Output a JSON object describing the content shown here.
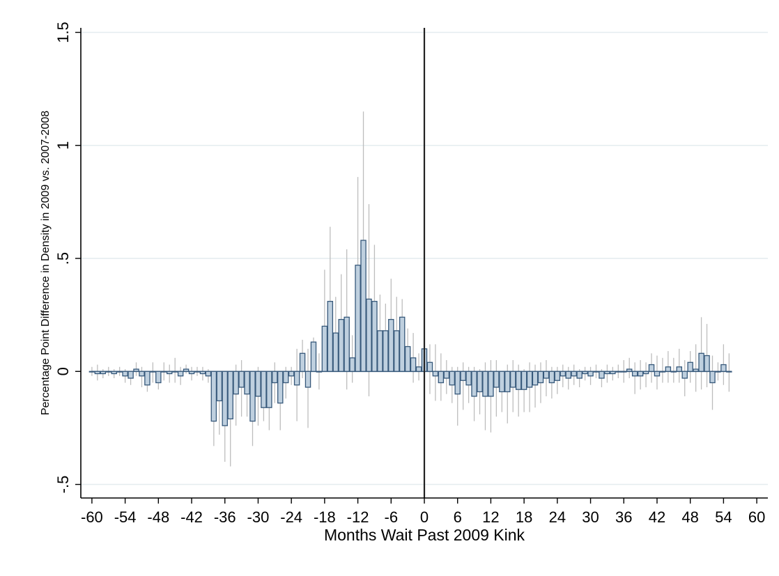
{
  "colors": {
    "background": "#ffffff",
    "bar_fill": "#bfd0df",
    "bar_stroke": "#36587a",
    "ci_line": "#bdbdbd",
    "grid": "#e4ecef",
    "axis": "#000000",
    "ref_line": "#222222"
  },
  "chart_data": {
    "type": "bar",
    "xlabel": "Months Wait Past 2009 Kink",
    "ylabel": "Percentage Point Difference in Density in 2009 vs. 2007-2008",
    "xlim": [
      -62,
      62
    ],
    "ylim": [
      -0.56,
      1.52
    ],
    "x_ticks": [
      -60,
      -54,
      -48,
      -42,
      -36,
      -30,
      -24,
      -18,
      -12,
      -6,
      0,
      6,
      12,
      18,
      24,
      30,
      36,
      42,
      48,
      54,
      60
    ],
    "x_tick_labels": [
      "-60",
      "-54",
      "-48",
      "-42",
      "-36",
      "-30",
      "-24",
      "-18",
      "-12",
      "-6",
      "0",
      "6",
      "12",
      "18",
      "24",
      "30",
      "36",
      "42",
      "48",
      "54",
      "60"
    ],
    "y_ticks": [
      -0.5,
      0,
      0.5,
      1,
      1.5
    ],
    "y_tick_labels": [
      "-.5",
      "0",
      ".5",
      "1",
      "1.5"
    ],
    "grid": "horizontal",
    "reference_line_x": 0,
    "bar_width": 0.9,
    "bars": [
      {
        "x": -60,
        "y": 0.0,
        "lo": -0.02,
        "hi": 0.02
      },
      {
        "x": -59,
        "y": -0.01,
        "lo": -0.04,
        "hi": 0.03
      },
      {
        "x": -58,
        "y": -0.01,
        "lo": -0.03,
        "hi": 0.01
      },
      {
        "x": -57,
        "y": 0.0,
        "lo": -0.02,
        "hi": 0.02
      },
      {
        "x": -56,
        "y": -0.01,
        "lo": -0.03,
        "hi": 0.01
      },
      {
        "x": -55,
        "y": 0.0,
        "lo": -0.02,
        "hi": 0.02
      },
      {
        "x": -54,
        "y": -0.02,
        "lo": -0.05,
        "hi": 0.01
      },
      {
        "x": -53,
        "y": -0.03,
        "lo": -0.06,
        "hi": 0.0
      },
      {
        "x": -52,
        "y": 0.01,
        "lo": -0.02,
        "hi": 0.04
      },
      {
        "x": -51,
        "y": -0.02,
        "lo": -0.07,
        "hi": 0.02
      },
      {
        "x": -50,
        "y": -0.06,
        "lo": -0.09,
        "hi": -0.02
      },
      {
        "x": -49,
        "y": 0.0,
        "lo": -0.05,
        "hi": 0.04
      },
      {
        "x": -48,
        "y": -0.05,
        "lo": -0.08,
        "hi": -0.01
      },
      {
        "x": -47,
        "y": 0.0,
        "lo": -0.04,
        "hi": 0.04
      },
      {
        "x": -46,
        "y": -0.01,
        "lo": -0.05,
        "hi": 0.03
      },
      {
        "x": -45,
        "y": 0.0,
        "lo": -0.05,
        "hi": 0.06
      },
      {
        "x": -44,
        "y": -0.02,
        "lo": -0.06,
        "hi": 0.02
      },
      {
        "x": -43,
        "y": 0.01,
        "lo": -0.01,
        "hi": 0.03
      },
      {
        "x": -42,
        "y": -0.01,
        "lo": -0.04,
        "hi": 0.02
      },
      {
        "x": -41,
        "y": 0.0,
        "lo": -0.02,
        "hi": 0.02
      },
      {
        "x": -40,
        "y": -0.01,
        "lo": -0.04,
        "hi": 0.02
      },
      {
        "x": -39,
        "y": -0.02,
        "lo": -0.05,
        "hi": 0.01
      },
      {
        "x": -38,
        "y": -0.22,
        "lo": -0.33,
        "hi": -0.11
      },
      {
        "x": -37,
        "y": -0.13,
        "lo": -0.28,
        "hi": 0.0
      },
      {
        "x": -36,
        "y": -0.24,
        "lo": -0.4,
        "hi": -0.09
      },
      {
        "x": -35,
        "y": -0.21,
        "lo": -0.42,
        "hi": 0.0
      },
      {
        "x": -34,
        "y": -0.1,
        "lo": -0.24,
        "hi": 0.03
      },
      {
        "x": -33,
        "y": -0.07,
        "lo": -0.2,
        "hi": 0.05
      },
      {
        "x": -32,
        "y": -0.1,
        "lo": -0.2,
        "hi": -0.01
      },
      {
        "x": -31,
        "y": -0.22,
        "lo": -0.33,
        "hi": -0.11
      },
      {
        "x": -30,
        "y": -0.11,
        "lo": -0.24,
        "hi": 0.02
      },
      {
        "x": -29,
        "y": -0.16,
        "lo": -0.22,
        "hi": -0.1
      },
      {
        "x": -28,
        "y": -0.16,
        "lo": -0.26,
        "hi": -0.06
      },
      {
        "x": -27,
        "y": -0.05,
        "lo": -0.14,
        "hi": 0.04
      },
      {
        "x": -26,
        "y": -0.14,
        "lo": -0.26,
        "hi": -0.02
      },
      {
        "x": -25,
        "y": -0.05,
        "lo": -0.12,
        "hi": 0.02
      },
      {
        "x": -24,
        "y": -0.02,
        "lo": -0.06,
        "hi": 0.02
      },
      {
        "x": -23,
        "y": -0.06,
        "lo": -0.22,
        "hi": 0.1
      },
      {
        "x": -22,
        "y": 0.08,
        "lo": -0.03,
        "hi": 0.14
      },
      {
        "x": -21,
        "y": -0.07,
        "lo": -0.25,
        "hi": 0.1
      },
      {
        "x": -20,
        "y": 0.13,
        "lo": 0.03,
        "hi": 0.15
      },
      {
        "x": -19,
        "y": 0.0,
        "lo": -0.08,
        "hi": 0.08
      },
      {
        "x": -18,
        "y": 0.2,
        "lo": 0.0,
        "hi": 0.45
      },
      {
        "x": -17,
        "y": 0.31,
        "lo": 0.0,
        "hi": 0.64
      },
      {
        "x": -16,
        "y": 0.17,
        "lo": 0.0,
        "hi": 0.33
      },
      {
        "x": -15,
        "y": 0.23,
        "lo": 0.05,
        "hi": 0.43
      },
      {
        "x": -14,
        "y": 0.24,
        "lo": -0.08,
        "hi": 0.54
      },
      {
        "x": -13,
        "y": 0.06,
        "lo": -0.05,
        "hi": 0.16
      },
      {
        "x": -12,
        "y": 0.47,
        "lo": 0.09,
        "hi": 0.86
      },
      {
        "x": -11,
        "y": 0.58,
        "lo": 0.0,
        "hi": 1.15
      },
      {
        "x": -10,
        "y": 0.32,
        "lo": -0.11,
        "hi": 0.74
      },
      {
        "x": -9,
        "y": 0.31,
        "lo": 0.0,
        "hi": 0.56
      },
      {
        "x": -8,
        "y": 0.18,
        "lo": 0.03,
        "hi": 0.34
      },
      {
        "x": -7,
        "y": 0.18,
        "lo": 0.05,
        "hi": 0.3
      },
      {
        "x": -6,
        "y": 0.23,
        "lo": 0.05,
        "hi": 0.41
      },
      {
        "x": -5,
        "y": 0.18,
        "lo": 0.03,
        "hi": 0.33
      },
      {
        "x": -4,
        "y": 0.24,
        "lo": 0.07,
        "hi": 0.32
      },
      {
        "x": -3,
        "y": 0.11,
        "lo": 0.03,
        "hi": 0.19
      },
      {
        "x": -2,
        "y": 0.06,
        "lo": -0.05,
        "hi": 0.17
      },
      {
        "x": -1,
        "y": 0.02,
        "lo": -0.04,
        "hi": 0.08
      },
      {
        "x": 0,
        "y": 0.1,
        "lo": 0.0,
        "hi": 0.19
      },
      {
        "x": 1,
        "y": 0.04,
        "lo": -0.1,
        "hi": 0.12
      },
      {
        "x": 2,
        "y": -0.02,
        "lo": -0.13,
        "hi": 0.12
      },
      {
        "x": 3,
        "y": -0.05,
        "lo": -0.13,
        "hi": 0.08
      },
      {
        "x": 4,
        "y": -0.03,
        "lo": -0.1,
        "hi": 0.05
      },
      {
        "x": 5,
        "y": -0.06,
        "lo": -0.14,
        "hi": 0.02
      },
      {
        "x": 6,
        "y": -0.1,
        "lo": -0.24,
        "hi": 0.02
      },
      {
        "x": 7,
        "y": -0.04,
        "lo": -0.17,
        "hi": 0.04
      },
      {
        "x": 8,
        "y": -0.06,
        "lo": -0.14,
        "hi": 0.02
      },
      {
        "x": 9,
        "y": -0.11,
        "lo": -0.22,
        "hi": 0.02
      },
      {
        "x": 10,
        "y": -0.09,
        "lo": -0.19,
        "hi": 0.01
      },
      {
        "x": 11,
        "y": -0.11,
        "lo": -0.26,
        "hi": 0.04
      },
      {
        "x": 12,
        "y": -0.11,
        "lo": -0.27,
        "hi": 0.05
      },
      {
        "x": 13,
        "y": -0.07,
        "lo": -0.2,
        "hi": 0.05
      },
      {
        "x": 14,
        "y": -0.09,
        "lo": -0.18,
        "hi": 0.0
      },
      {
        "x": 15,
        "y": -0.09,
        "lo": -0.23,
        "hi": 0.03
      },
      {
        "x": 16,
        "y": -0.07,
        "lo": -0.18,
        "hi": 0.05
      },
      {
        "x": 17,
        "y": -0.08,
        "lo": -0.2,
        "hi": 0.03
      },
      {
        "x": 18,
        "y": -0.08,
        "lo": -0.18,
        "hi": 0.01
      },
      {
        "x": 19,
        "y": -0.07,
        "lo": -0.18,
        "hi": 0.04
      },
      {
        "x": 20,
        "y": -0.06,
        "lo": -0.16,
        "hi": 0.03
      },
      {
        "x": 21,
        "y": -0.05,
        "lo": -0.14,
        "hi": 0.04
      },
      {
        "x": 22,
        "y": -0.03,
        "lo": -0.11,
        "hi": 0.05
      },
      {
        "x": 23,
        "y": -0.05,
        "lo": -0.12,
        "hi": 0.02
      },
      {
        "x": 24,
        "y": -0.04,
        "lo": -0.1,
        "hi": 0.02
      },
      {
        "x": 25,
        "y": -0.02,
        "lo": -0.07,
        "hi": 0.03
      },
      {
        "x": 26,
        "y": -0.03,
        "lo": -0.08,
        "hi": 0.02
      },
      {
        "x": 27,
        "y": -0.02,
        "lo": -0.06,
        "hi": 0.03
      },
      {
        "x": 28,
        "y": -0.03,
        "lo": -0.07,
        "hi": 0.01
      },
      {
        "x": 29,
        "y": -0.01,
        "lo": -0.04,
        "hi": 0.02
      },
      {
        "x": 30,
        "y": -0.02,
        "lo": -0.06,
        "hi": 0.02
      },
      {
        "x": 31,
        "y": 0.0,
        "lo": -0.03,
        "hi": 0.03
      },
      {
        "x": 32,
        "y": -0.03,
        "lo": -0.07,
        "hi": 0.01
      },
      {
        "x": 33,
        "y": -0.01,
        "lo": -0.05,
        "hi": 0.03
      },
      {
        "x": 34,
        "y": -0.01,
        "lo": -0.04,
        "hi": 0.02
      },
      {
        "x": 35,
        "y": 0.0,
        "lo": -0.03,
        "hi": 0.03
      },
      {
        "x": 36,
        "y": 0.0,
        "lo": -0.05,
        "hi": 0.05
      },
      {
        "x": 37,
        "y": 0.01,
        "lo": -0.03,
        "hi": 0.06
      },
      {
        "x": 38,
        "y": -0.02,
        "lo": -0.1,
        "hi": 0.04
      },
      {
        "x": 39,
        "y": -0.02,
        "lo": -0.08,
        "hi": 0.05
      },
      {
        "x": 40,
        "y": -0.01,
        "lo": -0.07,
        "hi": 0.04
      },
      {
        "x": 41,
        "y": 0.03,
        "lo": -0.05,
        "hi": 0.08
      },
      {
        "x": 42,
        "y": -0.02,
        "lo": -0.08,
        "hi": 0.07
      },
      {
        "x": 43,
        "y": 0.0,
        "lo": -0.05,
        "hi": 0.06
      },
      {
        "x": 44,
        "y": 0.02,
        "lo": -0.05,
        "hi": 0.09
      },
      {
        "x": 45,
        "y": 0.0,
        "lo": -0.05,
        "hi": 0.06
      },
      {
        "x": 46,
        "y": 0.02,
        "lo": -0.05,
        "hi": 0.1
      },
      {
        "x": 47,
        "y": -0.03,
        "lo": -0.11,
        "hi": 0.05
      },
      {
        "x": 48,
        "y": 0.04,
        "lo": -0.05,
        "hi": 0.09
      },
      {
        "x": 49,
        "y": 0.01,
        "lo": -0.09,
        "hi": 0.12
      },
      {
        "x": 50,
        "y": 0.08,
        "lo": -0.08,
        "hi": 0.24
      },
      {
        "x": 51,
        "y": 0.07,
        "lo": -0.07,
        "hi": 0.21
      },
      {
        "x": 52,
        "y": -0.05,
        "lo": -0.17,
        "hi": 0.07
      },
      {
        "x": 53,
        "y": 0.0,
        "lo": -0.04,
        "hi": 0.04
      },
      {
        "x": 54,
        "y": 0.03,
        "lo": -0.06,
        "hi": 0.12
      },
      {
        "x": 55,
        "y": 0.0,
        "lo": -0.09,
        "hi": 0.08
      }
    ]
  }
}
